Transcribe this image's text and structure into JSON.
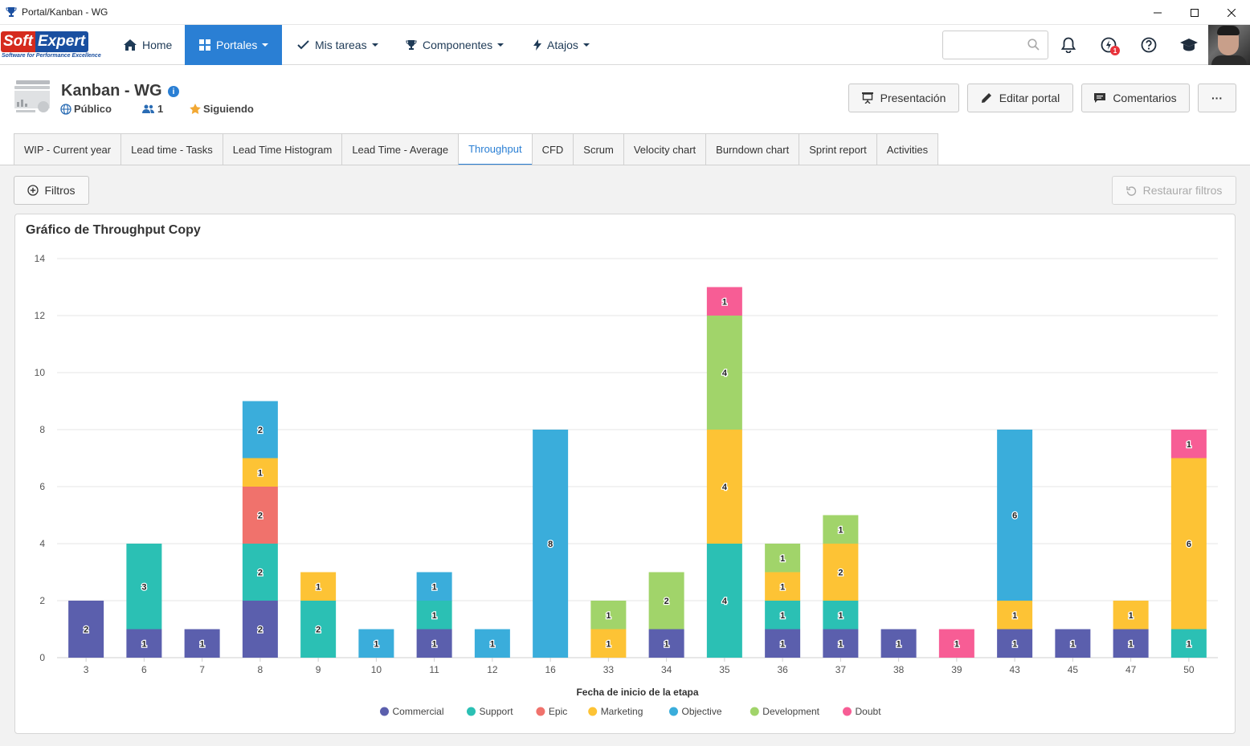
{
  "window": {
    "title": "Portal/Kanban - WG"
  },
  "logo": {
    "soft": "Soft",
    "expert": "Expert",
    "tagline": "Software for Performance Excellence"
  },
  "nav": {
    "home": "Home",
    "portales": "Portales",
    "tasks": "Mis tareas",
    "components": "Componentes",
    "shortcuts": "Atajos",
    "notification_badge": "1"
  },
  "header": {
    "title": "Kanban - WG",
    "visibility": "Público",
    "members": "1",
    "following": "Siguiendo",
    "buttons": {
      "presentation": "Presentación",
      "edit": "Editar portal",
      "comments": "Comentarios",
      "more": "···"
    }
  },
  "tabs": [
    {
      "label": "WIP - Current year",
      "active": false
    },
    {
      "label": "Lead time - Tasks",
      "active": false
    },
    {
      "label": "Lead Time Histogram",
      "active": false
    },
    {
      "label": "Lead Time - Average",
      "active": false
    },
    {
      "label": "Throughput",
      "active": true
    },
    {
      "label": "CFD",
      "active": false
    },
    {
      "label": "Scrum",
      "active": false
    },
    {
      "label": "Velocity chart",
      "active": false
    },
    {
      "label": "Burndown chart",
      "active": false
    },
    {
      "label": "Sprint report",
      "active": false
    },
    {
      "label": "Activities",
      "active": false
    }
  ],
  "toolbar": {
    "filters": "Filtros",
    "restore": "Restaurar filtros"
  },
  "colors": {
    "accent": "#2a7fd4",
    "Commercial": "#5b5fad",
    "Support": "#2bc0b4",
    "Epic": "#f0726c",
    "Marketing": "#fdc335",
    "Objective": "#3aaddb",
    "Development": "#a1d46a",
    "Doubt": "#f75d95"
  },
  "chart_data": {
    "type": "bar",
    "stacked": true,
    "title": "Gráfico de Throughput Copy",
    "xlabel": "Fecha de inicio de la etapa",
    "ylabel": "",
    "ylim": [
      0,
      14
    ],
    "yticks": [
      0,
      2,
      4,
      6,
      8,
      10,
      12,
      14
    ],
    "grid": true,
    "legend_position": "bottom",
    "categories": [
      "3",
      "6",
      "7",
      "8",
      "9",
      "10",
      "11",
      "12",
      "16",
      "33",
      "34",
      "35",
      "36",
      "37",
      "38",
      "39",
      "43",
      "45",
      "47",
      "50"
    ],
    "series": [
      {
        "name": "Commercial",
        "values": [
          2,
          1,
          1,
          2,
          0,
          0,
          1,
          0,
          0,
          0,
          1,
          0,
          1,
          1,
          1,
          0,
          1,
          1,
          1,
          0
        ]
      },
      {
        "name": "Support",
        "values": [
          0,
          3,
          0,
          2,
          2,
          0,
          1,
          0,
          0,
          0,
          0,
          4,
          1,
          1,
          0,
          0,
          0,
          0,
          0,
          1
        ]
      },
      {
        "name": "Epic",
        "values": [
          0,
          0,
          0,
          2,
          0,
          0,
          0,
          0,
          0,
          0,
          0,
          0,
          0,
          0,
          0,
          0,
          0,
          0,
          0,
          0
        ]
      },
      {
        "name": "Marketing",
        "values": [
          0,
          0,
          0,
          1,
          1,
          0,
          0,
          0,
          0,
          1,
          0,
          4,
          1,
          2,
          0,
          0,
          1,
          0,
          1,
          6
        ]
      },
      {
        "name": "Objective",
        "values": [
          0,
          0,
          0,
          2,
          0,
          1,
          1,
          1,
          8,
          0,
          0,
          0,
          0,
          0,
          0,
          0,
          6,
          0,
          0,
          0
        ]
      },
      {
        "name": "Development",
        "values": [
          0,
          0,
          0,
          0,
          0,
          0,
          0,
          0,
          0,
          1,
          2,
          4,
          1,
          1,
          0,
          0,
          0,
          0,
          0,
          0
        ]
      },
      {
        "name": "Doubt",
        "values": [
          0,
          0,
          0,
          0,
          0,
          0,
          0,
          0,
          0,
          0,
          0,
          1,
          0,
          0,
          0,
          1,
          0,
          0,
          0,
          1
        ]
      }
    ]
  }
}
